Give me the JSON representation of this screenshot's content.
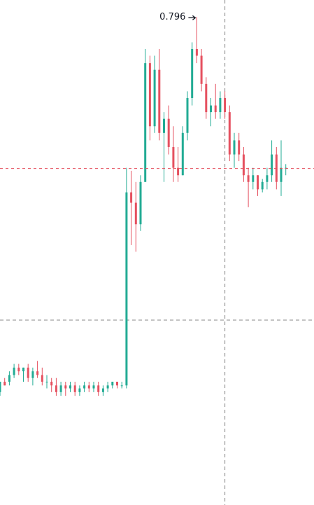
{
  "chart_data": {
    "type": "candlestick",
    "ylim": [
      0.139,
      0.819
    ],
    "up_color": "#22ab94",
    "down_color": "#e5505f",
    "high_label": 0.796,
    "last_price": 0.592,
    "crosshair_price": 0.388,
    "crosshair_index": 48,
    "open": [
      0.291,
      0.305,
      0.305,
      0.314,
      0.324,
      0.319,
      0.324,
      0.31,
      0.319,
      0.314,
      0.305,
      0.305,
      0.3,
      0.291,
      0.3,
      0.296,
      0.3,
      0.291,
      0.296,
      0.3,
      0.296,
      0.3,
      0.291,
      0.296,
      0.3,
      0.305,
      0.3,
      0.3,
      0.56,
      0.546,
      0.517,
      0.574,
      0.734,
      0.649,
      0.725,
      0.64,
      0.659,
      0.621,
      0.593,
      0.583,
      0.64,
      0.687,
      0.753,
      0.744,
      0.706,
      0.668,
      0.677,
      0.668,
      0.687,
      0.668,
      0.611,
      0.63,
      0.611,
      0.583,
      0.574,
      0.583,
      0.564,
      0.574,
      0.583,
      0.611,
      0.574,
      0.593
    ],
    "high": [
      0.305,
      0.31,
      0.319,
      0.329,
      0.329,
      0.324,
      0.329,
      0.324,
      0.333,
      0.324,
      0.314,
      0.31,
      0.31,
      0.305,
      0.305,
      0.305,
      0.305,
      0.3,
      0.305,
      0.305,
      0.305,
      0.305,
      0.3,
      0.305,
      0.305,
      0.305,
      0.305,
      0.593,
      0.589,
      0.574,
      0.583,
      0.753,
      0.744,
      0.744,
      0.753,
      0.668,
      0.677,
      0.649,
      0.621,
      0.649,
      0.696,
      0.762,
      0.796,
      0.753,
      0.715,
      0.687,
      0.706,
      0.696,
      0.696,
      0.677,
      0.64,
      0.64,
      0.621,
      0.593,
      0.593,
      0.583,
      0.578,
      0.593,
      0.63,
      0.621,
      0.63,
      0.598
    ],
    "low": [
      0.286,
      0.3,
      0.3,
      0.31,
      0.314,
      0.305,
      0.305,
      0.3,
      0.31,
      0.3,
      0.296,
      0.291,
      0.286,
      0.286,
      0.286,
      0.291,
      0.286,
      0.286,
      0.291,
      0.291,
      0.291,
      0.286,
      0.286,
      0.291,
      0.296,
      0.296,
      0.296,
      0.296,
      0.489,
      0.48,
      0.508,
      0.574,
      0.63,
      0.64,
      0.63,
      0.574,
      0.611,
      0.574,
      0.574,
      0.583,
      0.63,
      0.677,
      0.734,
      0.696,
      0.659,
      0.649,
      0.659,
      0.659,
      0.659,
      0.602,
      0.593,
      0.602,
      0.574,
      0.54,
      0.564,
      0.555,
      0.56,
      0.564,
      0.574,
      0.564,
      0.555,
      0.583
    ],
    "close": [
      0.305,
      0.3,
      0.314,
      0.324,
      0.319,
      0.324,
      0.31,
      0.319,
      0.314,
      0.305,
      0.305,
      0.3,
      0.291,
      0.3,
      0.296,
      0.3,
      0.291,
      0.296,
      0.3,
      0.296,
      0.3,
      0.291,
      0.296,
      0.3,
      0.305,
      0.3,
      0.3,
      0.56,
      0.546,
      0.517,
      0.574,
      0.734,
      0.649,
      0.725,
      0.64,
      0.659,
      0.621,
      0.593,
      0.583,
      0.64,
      0.687,
      0.753,
      0.744,
      0.706,
      0.668,
      0.677,
      0.668,
      0.687,
      0.668,
      0.611,
      0.63,
      0.611,
      0.583,
      0.574,
      0.583,
      0.564,
      0.574,
      0.583,
      0.611,
      0.574,
      0.593,
      0.593
    ]
  }
}
